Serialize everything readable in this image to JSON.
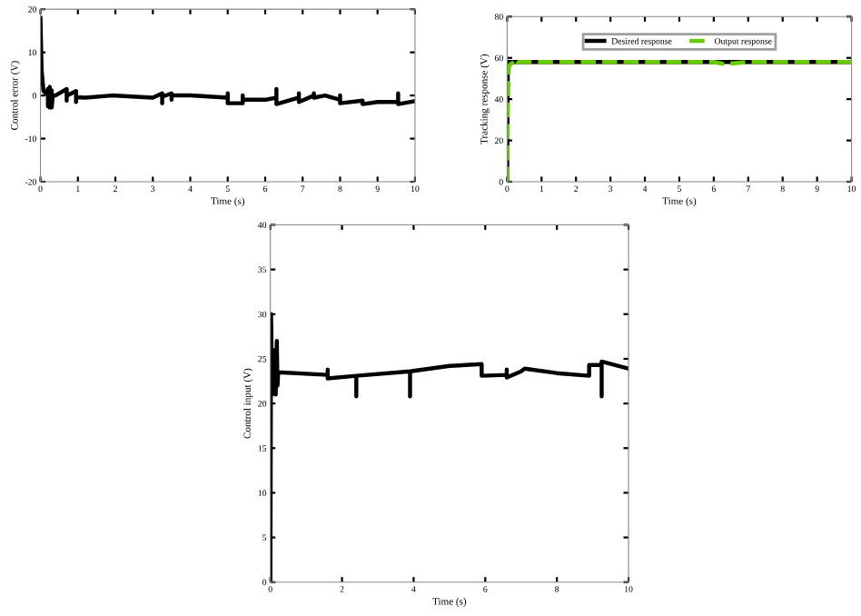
{
  "chart_data": [
    {
      "type": "line",
      "xlabel": "Time (s)",
      "ylabel": "Control error (V)",
      "xlim": [
        0,
        10
      ],
      "ylim": [
        -20,
        20
      ],
      "xticks": [
        0,
        1,
        2,
        3,
        4,
        5,
        6,
        7,
        8,
        9,
        10
      ],
      "yticks": [
        -20,
        -10,
        0,
        10,
        20
      ],
      "grid": false,
      "legend": false,
      "series": [
        {
          "color": "#000000",
          "x": [
            0,
            0.03,
            0.08,
            0.15,
            0.2,
            0.2,
            0.22,
            0.25,
            0.25,
            0.28,
            0.3,
            0.3,
            0.33,
            0.4,
            0.7,
            0.7,
            0.7,
            0.72,
            0.95,
            0.95,
            0.95,
            0.97,
            1.2,
            1.9,
            3.0,
            3.25,
            3.25,
            3.25,
            3.5,
            3.5,
            3.5,
            4.0,
            5.0,
            5.0,
            5.0,
            5.4,
            5.4,
            5.4,
            6.0,
            6.3,
            6.3,
            6.3,
            6.9,
            6.9,
            6.9,
            7.3,
            7.3,
            7.3,
            7.6,
            8.0,
            8.0,
            8.0,
            8.6,
            8.6,
            8.6,
            9.0,
            9.55,
            9.55,
            9.55,
            10.0
          ],
          "values": [
            18,
            6,
            1,
            0.5,
            1.5,
            -2.5,
            0,
            2,
            -2.8,
            0,
            1.2,
            -2.8,
            0,
            0,
            1.5,
            -1.2,
            0,
            0,
            1,
            -1.5,
            -0.3,
            -0.4,
            -0.5,
            0,
            -0.5,
            0.5,
            -1.8,
            -0.3,
            0.5,
            -1,
            0,
            0,
            -0.5,
            0.5,
            -1.8,
            -1.8,
            0,
            -1,
            -1,
            -0.5,
            1.5,
            -2,
            -0.5,
            0.5,
            -1.5,
            0,
            0.5,
            -0.5,
            0,
            -1,
            0,
            -1.8,
            -1.2,
            -1.2,
            -2,
            -1.5,
            -1.5,
            0.5,
            -2,
            -1.3
          ]
        }
      ]
    },
    {
      "type": "line",
      "xlabel": "Time (s)",
      "ylabel": "Tracking response (V)",
      "xlim": [
        0,
        10
      ],
      "ylim": [
        0,
        80
      ],
      "xticks": [
        0,
        1,
        2,
        3,
        4,
        5,
        6,
        7,
        8,
        9,
        10
      ],
      "yticks": [
        0,
        20,
        40,
        60,
        80
      ],
      "grid": false,
      "legend": "top",
      "series": [
        {
          "name": "Desired response",
          "color": "#000000",
          "line_style": "solid",
          "x": [
            0,
            0.02,
            10
          ],
          "values": [
            0,
            58,
            58
          ]
        },
        {
          "name": "Output response",
          "color": "#66cc00",
          "line_style": "dashed",
          "x": [
            0,
            0.03,
            0.06,
            0.1,
            0.2,
            0.25,
            0.3,
            0.5,
            1,
            2,
            3,
            4,
            5,
            6,
            6.3,
            7,
            8,
            9,
            10
          ],
          "values": [
            0,
            52,
            56,
            57,
            58,
            59.5,
            58,
            58,
            58,
            58,
            58,
            58,
            58,
            58,
            57,
            58,
            58,
            58,
            58
          ]
        }
      ]
    },
    {
      "type": "line",
      "xlabel": "Time (s)",
      "ylabel": "Control input (V)",
      "xlim": [
        0,
        10
      ],
      "ylim": [
        0,
        40
      ],
      "xticks": [
        0,
        2,
        4,
        6,
        8,
        10
      ],
      "yticks": [
        0,
        5,
        10,
        15,
        20,
        25,
        30,
        35,
        40
      ],
      "grid": false,
      "legend": false,
      "series": [
        {
          "color": "#000000",
          "x": [
            0,
            0.02,
            0.05,
            0.08,
            0.1,
            0.15,
            0.18,
            0.2,
            0.22,
            1.6,
            1.6,
            1.6,
            2.4,
            2.4,
            2.4,
            3.9,
            3.9,
            3.9,
            5.0,
            5.9,
            5.9,
            6.6,
            6.6,
            6.6,
            7.0,
            7.1,
            8.0,
            8.9,
            8.9,
            9.25,
            9.25,
            9.25,
            10.0
          ],
          "values": [
            0,
            30,
            21,
            26,
            24,
            21,
            27,
            22,
            23.5,
            23.2,
            23.8,
            22.8,
            23.1,
            20.8,
            23.1,
            23.6,
            20.8,
            23.6,
            24.2,
            24.4,
            23.1,
            23.2,
            23.8,
            22.9,
            23.6,
            23.9,
            23.4,
            23.1,
            24.3,
            24.3,
            20.8,
            24.7,
            23.9
          ]
        }
      ]
    }
  ]
}
